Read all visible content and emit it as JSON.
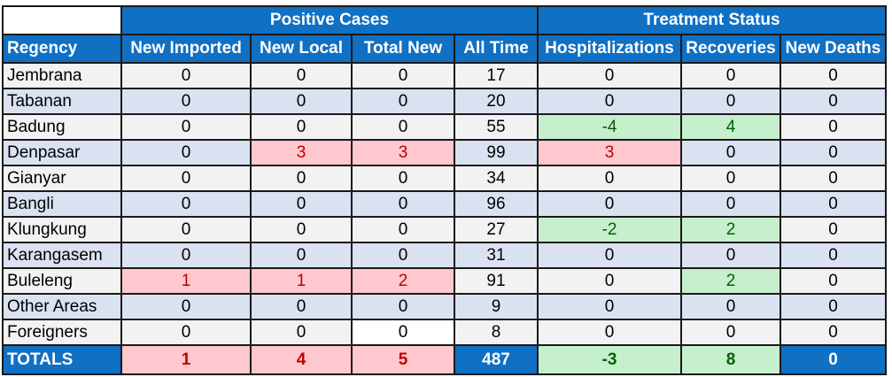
{
  "header": {
    "group_positive": "Positive Cases",
    "group_treatment": "Treatment Status",
    "columns": [
      "Regency",
      "New Imported",
      "New Local",
      "Total New",
      "All Time",
      "Hospitalizations",
      "Recoveries",
      "New Deaths"
    ]
  },
  "rows": [
    {
      "name": "Jembrana",
      "values": [
        "0",
        "0",
        "0",
        "17",
        "0",
        "0",
        "0"
      ]
    },
    {
      "name": "Tabanan",
      "values": [
        "0",
        "0",
        "0",
        "20",
        "0",
        "0",
        "0"
      ]
    },
    {
      "name": "Badung",
      "values": [
        "0",
        "0",
        "0",
        "55",
        "-4",
        "4",
        "0"
      ]
    },
    {
      "name": "Denpasar",
      "values": [
        "0",
        "3",
        "3",
        "99",
        "3",
        "0",
        "0"
      ]
    },
    {
      "name": "Gianyar",
      "values": [
        "0",
        "0",
        "0",
        "34",
        "0",
        "0",
        "0"
      ]
    },
    {
      "name": "Bangli",
      "values": [
        "0",
        "0",
        "0",
        "96",
        "0",
        "0",
        "0"
      ]
    },
    {
      "name": "Klungkung",
      "values": [
        "0",
        "0",
        "0",
        "27",
        "-2",
        "2",
        "0"
      ]
    },
    {
      "name": "Karangasem",
      "values": [
        "0",
        "0",
        "0",
        "31",
        "0",
        "0",
        "0"
      ]
    },
    {
      "name": "Buleleng",
      "values": [
        "1",
        "1",
        "2",
        "91",
        "0",
        "2",
        "0"
      ]
    },
    {
      "name": "Other Areas",
      "values": [
        "0",
        "0",
        "0",
        "9",
        "0",
        "0",
        "0"
      ]
    },
    {
      "name": "Foreigners",
      "values": [
        "0",
        "0",
        "0",
        "8",
        "0",
        "0",
        "0"
      ]
    }
  ],
  "totals": {
    "name": "TOTALS",
    "values": [
      "1",
      "4",
      "5",
      "487",
      "-3",
      "8",
      "0"
    ]
  },
  "colors": {
    "header_blue": "#1070c4",
    "row_white": "#f2f2f2",
    "row_blue": "#dae2f2",
    "highlight_red": "#ffc7ce",
    "highlight_green": "#c6efce"
  }
}
